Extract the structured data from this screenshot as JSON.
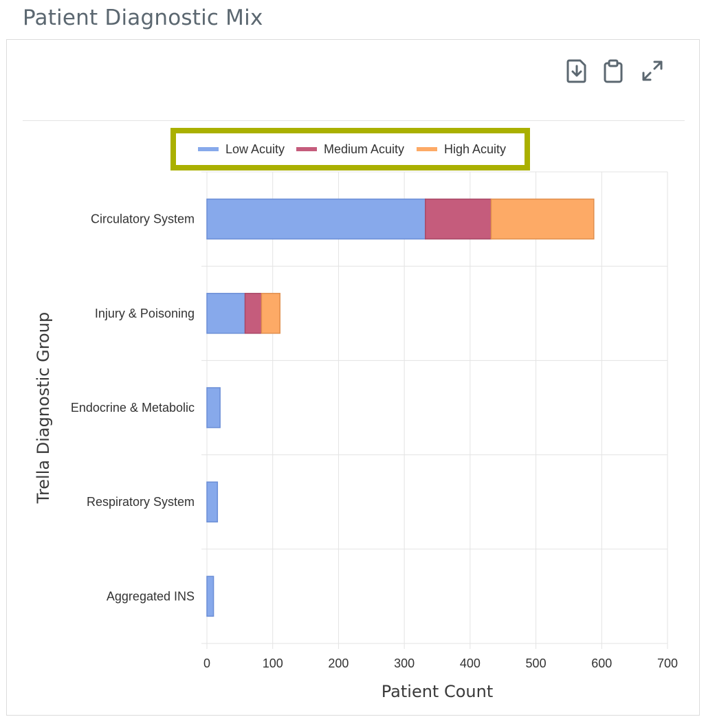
{
  "page": {
    "title": "Patient Diagnostic Mix"
  },
  "toolbar": {
    "download_icon": "file-download-icon",
    "clipboard_icon": "clipboard-icon",
    "expand_icon": "expand-icon"
  },
  "colors": {
    "low": "#87a9eb",
    "medium": "#c55c7c",
    "high": "#fdaa66",
    "legend_border": "#aab000",
    "grid": "#e3e3e3"
  },
  "chart_data": {
    "type": "bar",
    "orientation": "horizontal",
    "stacked": true,
    "categories": [
      "Circulatory System",
      "Injury & Poisoning",
      "Endocrine & Metabolic",
      "Respiratory System",
      "Aggregated INS"
    ],
    "series": [
      {
        "name": "Low Acuity",
        "values": [
          332,
          58,
          20,
          16,
          10
        ]
      },
      {
        "name": "Medium Acuity",
        "values": [
          100,
          25,
          0,
          0,
          0
        ]
      },
      {
        "name": "High Acuity",
        "values": [
          156,
          28,
          0,
          0,
          0
        ]
      }
    ],
    "xlabel": "Patient Count",
    "ylabel": "Trella Diagnostic Group",
    "xlim": [
      0,
      700
    ],
    "xticks": [
      0,
      100,
      200,
      300,
      400,
      500,
      600,
      700
    ],
    "grid": true,
    "legend_position": "top-center"
  }
}
